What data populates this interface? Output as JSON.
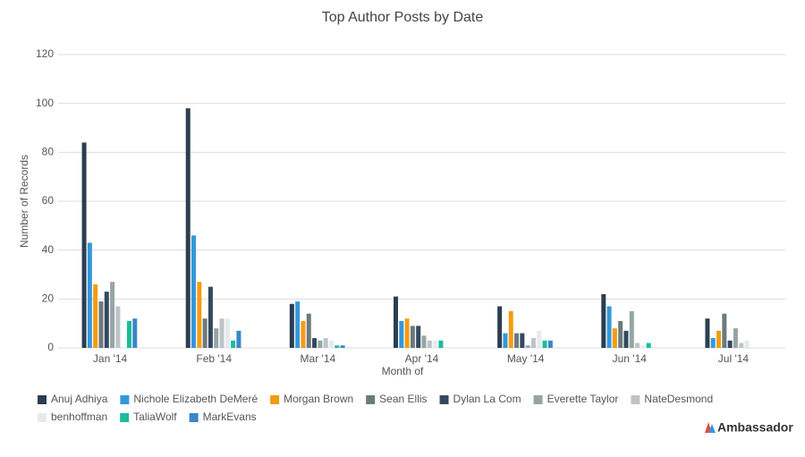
{
  "chart_data": {
    "type": "bar",
    "title": "Top Author Posts by Date",
    "x_label": "Month of",
    "y_label": "Number of Records",
    "categories": [
      "Jan '14",
      "Feb '14",
      "Mar '14",
      "Apr '14",
      "May '14",
      "Jun '14",
      "Jul '14"
    ],
    "series": [
      {
        "name": "Anuj Adhiya",
        "color": "#2c3e50",
        "values": [
          84,
          98,
          18,
          21,
          17,
          22,
          12
        ]
      },
      {
        "name": "Nichole Elizabeth DeMeré",
        "color": "#3498db",
        "values": [
          43,
          46,
          19,
          11,
          6,
          17,
          4
        ]
      },
      {
        "name": "Morgan Brown",
        "color": "#f39c12",
        "values": [
          26,
          27,
          11,
          12,
          15,
          8,
          7
        ]
      },
      {
        "name": "Sean Ellis",
        "color": "#6c7a7d",
        "values": [
          19,
          12,
          14,
          9,
          6,
          11,
          14
        ]
      },
      {
        "name": "Dylan La Com",
        "color": "#34495e",
        "values": [
          23,
          25,
          4,
          9,
          6,
          7,
          3
        ]
      },
      {
        "name": "Everette Taylor",
        "color": "#95a5a6",
        "values": [
          27,
          8,
          3,
          5,
          1,
          15,
          8
        ]
      },
      {
        "name": "NateDesmond",
        "color": "#bdc3c7",
        "values": [
          17,
          12,
          4,
          3,
          4,
          2,
          2
        ]
      },
      {
        "name": "benhoffman",
        "color": "#e6eaeb",
        "values": [
          0,
          12,
          3,
          3,
          7,
          1,
          3
        ]
      },
      {
        "name": "TaliaWolf",
        "color": "#1abc9c",
        "values": [
          11,
          3,
          1,
          3,
          3,
          2,
          0
        ]
      },
      {
        "name": "MarkEvans",
        "color": "#3a87c8",
        "values": [
          12,
          7,
          1,
          0,
          3,
          0,
          0
        ]
      }
    ],
    "ylim": [
      0,
      120
    ],
    "yticks": [
      0,
      20,
      40,
      60,
      80,
      100,
      120
    ],
    "grid": true,
    "legend": "bottom"
  },
  "brand": "Ambassador"
}
